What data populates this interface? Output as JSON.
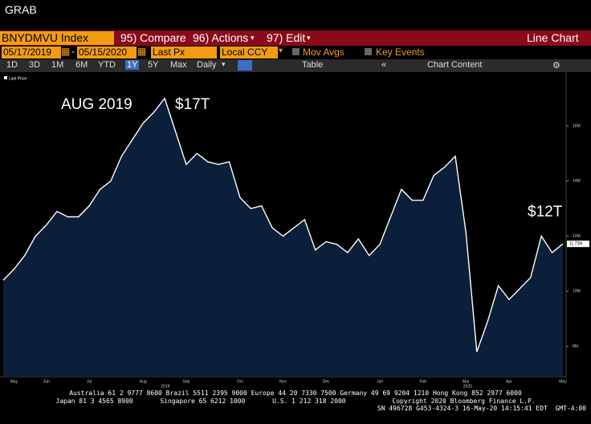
{
  "window_title": "GRAB",
  "toolbar": {
    "ticker": "BNYDMVU Index",
    "compare": "95) Compare",
    "actions": "96) Actions",
    "edit": "97) Edit",
    "view": "Line Chart"
  },
  "settings": {
    "start_date": "05/17/2019",
    "end_date": "05/15/2020",
    "field": "Last Px",
    "currency": "Local CCY",
    "mov_avgs": "Mov Avgs",
    "key_events": "Key Events"
  },
  "periods": [
    "1D",
    "3D",
    "1M",
    "6M",
    "YTD",
    "1Y",
    "5Y",
    "Max"
  ],
  "frequency": "Daily",
  "table": "Table",
  "chart_content": "Chart Content",
  "chart_data": {
    "type": "line",
    "categories": [
      null,
      "May",
      null,
      null,
      "Jun",
      null,
      null,
      null,
      "Jul",
      null,
      null,
      null,
      null,
      "Aug",
      null,
      null,
      null,
      "Sep",
      null,
      null,
      null,
      null,
      "Oct",
      null,
      null,
      null,
      "Nov",
      null,
      null,
      null,
      "Dec",
      null,
      null,
      null,
      null,
      "Jan",
      null,
      null,
      null,
      "Feb",
      null,
      null,
      null,
      "Mar",
      null,
      null,
      null,
      "Apr",
      null,
      null,
      null,
      null,
      "May"
    ],
    "series": [
      {
        "name": "Last Price",
        "color": "#ffffff",
        "values": [
          10.4,
          10.8,
          11.3,
          12.0,
          12.4,
          12.9,
          12.7,
          12.7,
          13.1,
          13.7,
          14.0,
          14.9,
          15.5,
          16.1,
          16.5,
          17.0,
          15.8,
          14.6,
          15.0,
          14.7,
          14.6,
          14.7,
          13.4,
          13.0,
          13.1,
          12.3,
          12.0,
          12.3,
          12.6,
          11.5,
          11.8,
          11.7,
          11.4,
          11.9,
          11.3,
          11.7,
          12.7,
          13.7,
          13.3,
          13.3,
          14.2,
          14.5,
          14.9,
          12.1,
          7.8,
          8.9,
          10.2,
          9.7,
          10.1,
          10.5,
          12.0,
          11.4,
          11.72
        ]
      }
    ],
    "area_color": "#0b1f3a",
    "ylim": [
      6.9,
      17.95
    ],
    "yticks": [
      {
        "value": 8,
        "label": "8M"
      },
      {
        "value": 10,
        "label": "10M"
      },
      {
        "value": 12,
        "label": "12M"
      },
      {
        "value": 14,
        "label": "14M"
      },
      {
        "value": 16,
        "label": "16M"
      }
    ],
    "last_label": {
      "value": 11.72,
      "label": "11.72M"
    },
    "year_labels": [
      "2019",
      "2020"
    ],
    "annotations": [
      "AUG 2019",
      "$17T",
      "$12T"
    ]
  },
  "footer": [
    "Australia 61 2 9777 8600 Brazil 5511 2395 9000 Europe 44 20 7330 7500 Germany 49 69 9204 1210 Hong Kong 852 2977 6000",
    "Japan 81 3 4565 8900       Singapore 65 6212 1000       U.S. 1 212 318 2000            Copyright 2020 Bloomberg Finance L.P.",
    "SN 496728 G453-4324-3 16-May-20 14:15:41 EDT  GMT-4:00"
  ]
}
